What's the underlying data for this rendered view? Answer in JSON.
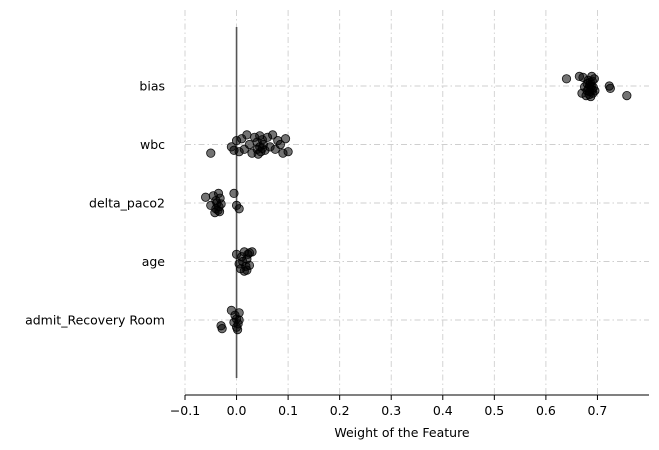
{
  "chart_data": {
    "type": "scatter",
    "xlabel": "Weight of the Feature",
    "ylabel": "",
    "xlim": [
      -0.1,
      0.8
    ],
    "x_ticks": [
      -0.1,
      0.0,
      0.1,
      0.2,
      0.3,
      0.4,
      0.5,
      0.6,
      0.7
    ],
    "x_tick_labels": [
      "−0.1",
      "0.0",
      "0.1",
      "0.2",
      "0.3",
      "0.4",
      "0.5",
      "0.6",
      "0.7"
    ],
    "categories": [
      "bias",
      "wbc",
      "delta_paco2",
      "age",
      "admit_Recovery Room"
    ],
    "grid": true,
    "reference_line_x": 0.0,
    "point_color": "#000000",
    "points": [
      {
        "category": "bias",
        "values": [
          0.64,
          0.665,
          0.67,
          0.672,
          0.675,
          0.678,
          0.68,
          0.68,
          0.682,
          0.683,
          0.684,
          0.685,
          0.685,
          0.686,
          0.687,
          0.688,
          0.689,
          0.69,
          0.69,
          0.691,
          0.692,
          0.694,
          0.695,
          0.723,
          0.725,
          0.757
        ],
        "offsets": [
          -0.15,
          -0.2,
          0.15,
          -0.18,
          0.02,
          0.2,
          -0.05,
          0.1,
          -0.12,
          0.05,
          0.18,
          -0.02,
          0.12,
          -0.08,
          0.22,
          0.0,
          -0.2,
          0.08,
          -0.1,
          0.15,
          0.03,
          -0.15,
          0.1,
          0.0,
          0.05,
          0.2
        ]
      },
      {
        "category": "wbc",
        "values": [
          -0.05,
          -0.01,
          -0.005,
          0.0,
          0.005,
          0.01,
          0.015,
          0.02,
          0.025,
          0.03,
          0.035,
          0.04,
          0.04,
          0.042,
          0.045,
          0.045,
          0.047,
          0.05,
          0.05,
          0.052,
          0.055,
          0.06,
          0.065,
          0.07,
          0.075,
          0.08,
          0.085,
          0.09,
          0.095,
          0.1
        ],
        "offsets": [
          0.18,
          0.05,
          0.12,
          -0.08,
          0.15,
          -0.12,
          0.1,
          -0.2,
          0.0,
          0.18,
          -0.15,
          -0.05,
          0.1,
          0.2,
          -0.18,
          0.05,
          0.15,
          -0.1,
          0.08,
          0.0,
          0.12,
          -0.15,
          0.05,
          -0.2,
          0.1,
          -0.08,
          0.0,
          0.18,
          -0.12,
          0.15
        ]
      },
      {
        "category": "delta_paco2",
        "values": [
          -0.06,
          -0.05,
          -0.045,
          -0.042,
          -0.04,
          -0.04,
          -0.038,
          -0.036,
          -0.035,
          -0.034,
          -0.033,
          -0.032,
          -0.03,
          -0.005,
          0.0,
          0.005
        ],
        "offsets": [
          -0.12,
          0.05,
          -0.15,
          0.2,
          -0.05,
          0.12,
          0.0,
          0.15,
          -0.2,
          0.08,
          0.18,
          -0.1,
          0.02,
          -0.2,
          0.05,
          0.12
        ]
      },
      {
        "category": "age",
        "values": [
          0.0,
          0.005,
          0.008,
          0.01,
          0.012,
          0.015,
          0.015,
          0.018,
          0.02,
          0.02,
          0.022,
          0.025,
          0.025,
          0.03
        ],
        "offsets": [
          -0.15,
          0.05,
          0.15,
          -0.1,
          0.0,
          0.2,
          -0.2,
          0.1,
          -0.05,
          0.18,
          -0.15,
          0.08,
          -0.18,
          -0.2
        ]
      },
      {
        "category": "admit_Recovery Room",
        "values": [
          -0.03,
          -0.028,
          -0.01,
          -0.005,
          -0.003,
          0.0,
          0.0,
          0.002,
          0.003,
          0.005,
          0.005
        ],
        "offsets": [
          0.12,
          0.18,
          -0.2,
          0.05,
          -0.1,
          0.15,
          -0.02,
          0.2,
          0.08,
          -0.15,
          0.0
        ]
      }
    ]
  }
}
